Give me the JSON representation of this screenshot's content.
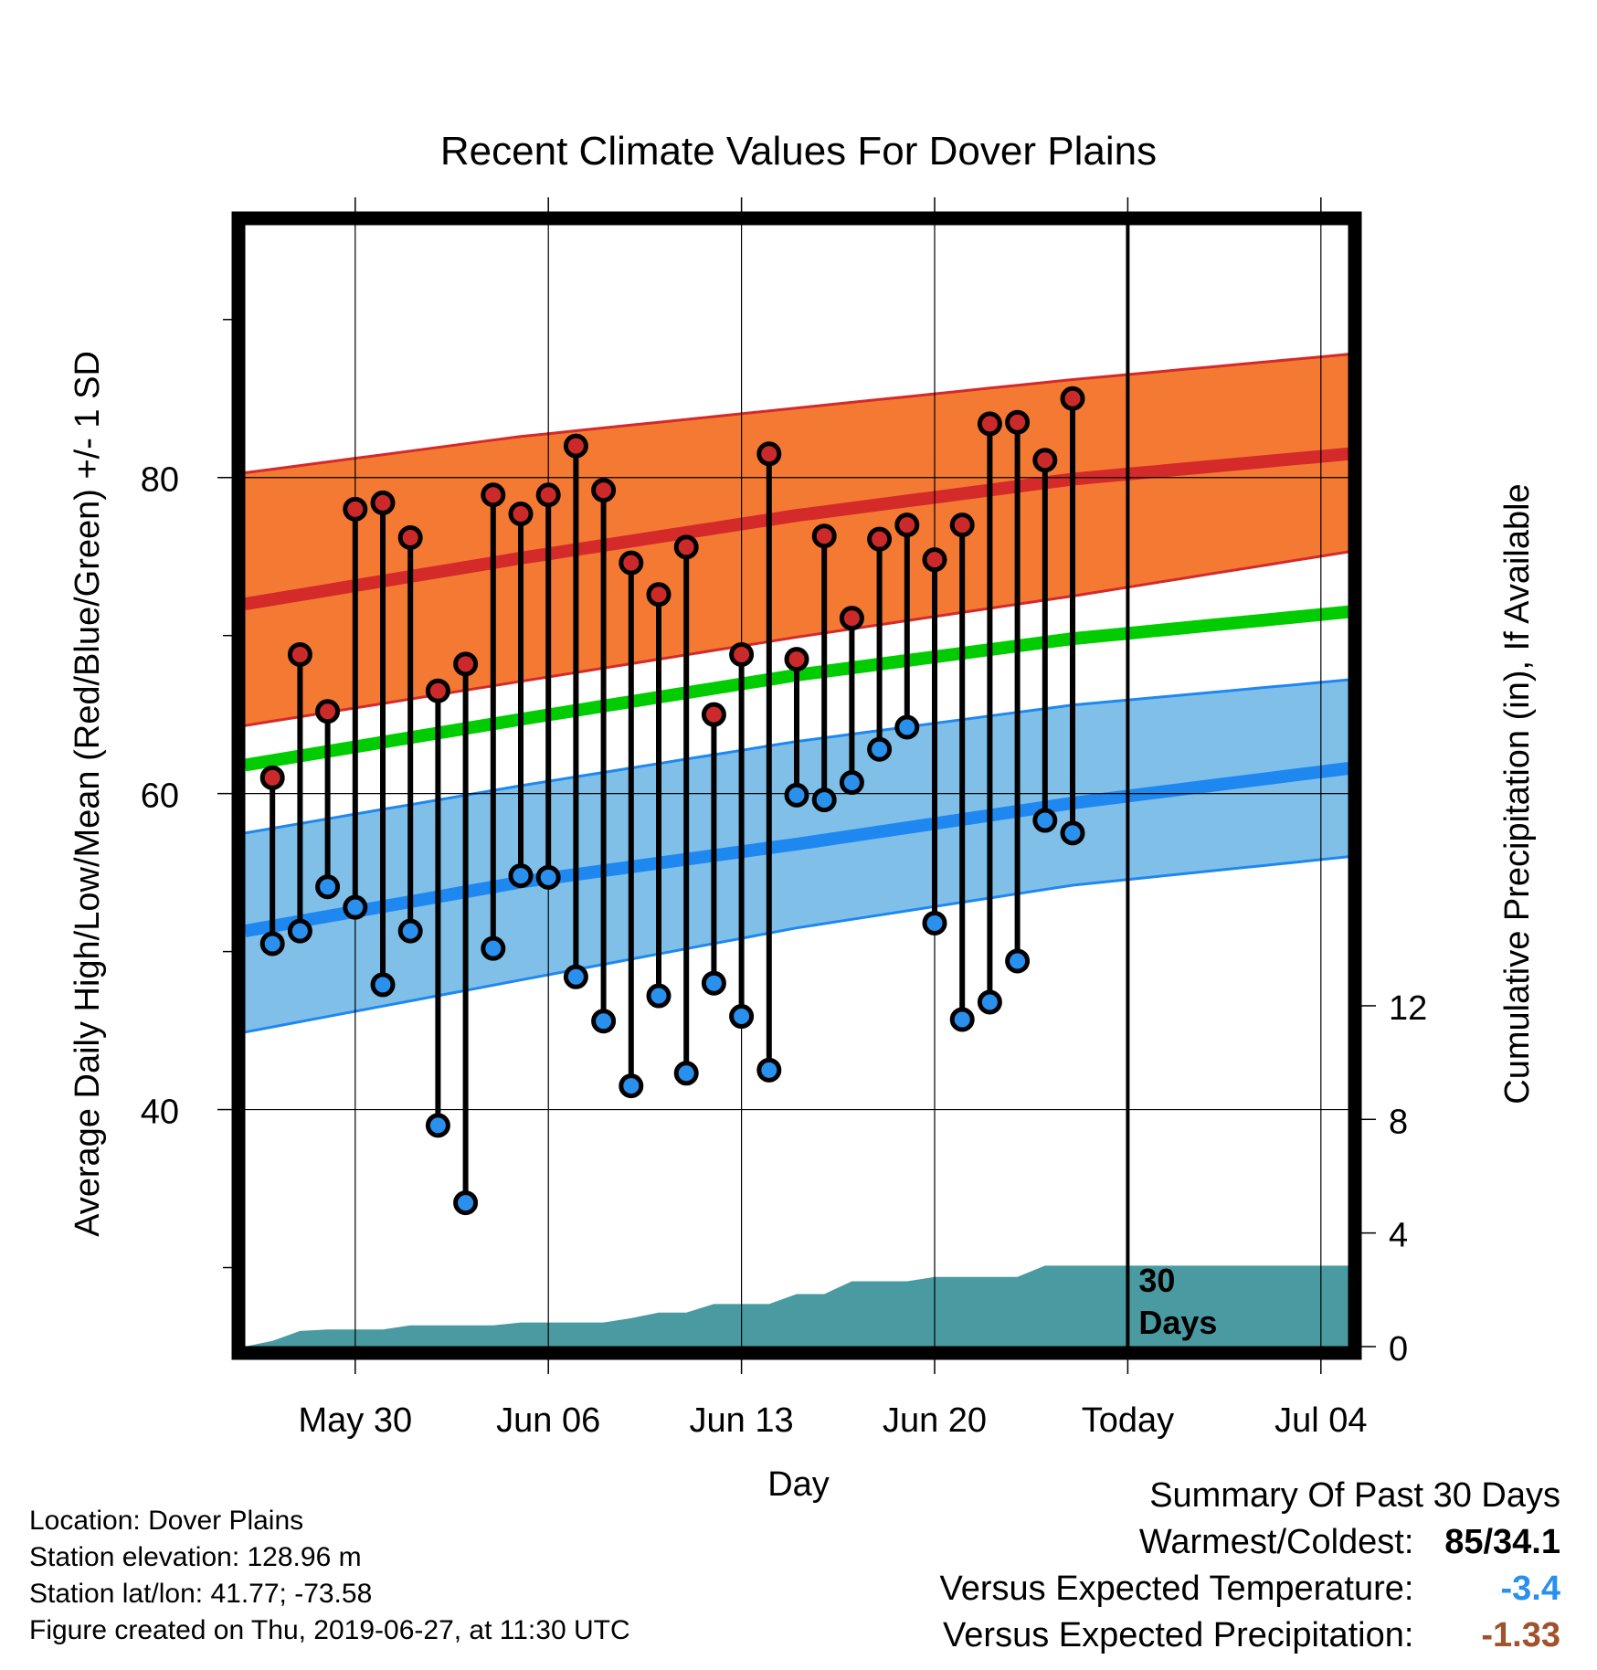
{
  "chart_data": {
    "type": "line",
    "title": "Recent Climate Values For Dover Plains",
    "xlabel": "Day",
    "ylabel": "Average Daily High/Low/Mean (Red/Blue/Green) +/- 1 SD",
    "y2label": "Cumulative Precipitation (in), If Available",
    "xlim": [
      "2019-05-26",
      "2019-07-05"
    ],
    "ylim": [
      25,
      96
    ],
    "y2lim": [
      0,
      39.5
    ],
    "x_ticks": [
      {
        "date": "2019-05-30",
        "label": "May 30"
      },
      {
        "date": "2019-06-06",
        "label": "Jun 06"
      },
      {
        "date": "2019-06-13",
        "label": "Jun 13"
      },
      {
        "date": "2019-06-20",
        "label": "Jun 20"
      },
      {
        "date": "2019-06-27",
        "label": "Today"
      },
      {
        "date": "2019-07-04",
        "label": "Jul 04"
      }
    ],
    "y_ticks": [
      40,
      60,
      80
    ],
    "y_minor_ticks": [
      30,
      50,
      70,
      90
    ],
    "y2_ticks": [
      0,
      4,
      8,
      12
    ],
    "today": "2019-06-27",
    "today_label": "30 Days",
    "grid": true,
    "normals": {
      "dates": [
        "2019-05-26",
        "2019-06-05",
        "2019-06-15",
        "2019-06-25",
        "2019-07-05"
      ],
      "high_mean": [
        72.0,
        74.9,
        77.6,
        79.9,
        81.5
      ],
      "high_upper": [
        80.3,
        82.6,
        84.4,
        86.2,
        87.8
      ],
      "high_lower": [
        64.3,
        67.1,
        69.9,
        72.5,
        75.3
      ],
      "avg_mean": [
        61.8,
        64.7,
        67.5,
        69.8,
        71.5
      ],
      "low_mean": [
        51.3,
        54.4,
        56.8,
        59.4,
        61.6
      ],
      "low_upper": [
        57.5,
        60.5,
        63.3,
        65.6,
        67.2
      ],
      "low_lower": [
        44.9,
        48.2,
        51.5,
        54.2,
        56.0
      ]
    },
    "series": [
      {
        "name": "High",
        "dates": [
          "2019-05-27",
          "2019-05-28",
          "2019-05-29",
          "2019-05-30",
          "2019-05-31",
          "2019-06-01",
          "2019-06-02",
          "2019-06-03",
          "2019-06-04",
          "2019-06-05",
          "2019-06-06",
          "2019-06-07",
          "2019-06-08",
          "2019-06-09",
          "2019-06-10",
          "2019-06-11",
          "2019-06-12",
          "2019-06-13",
          "2019-06-14",
          "2019-06-15",
          "2019-06-16",
          "2019-06-17",
          "2019-06-18",
          "2019-06-19",
          "2019-06-20",
          "2019-06-21",
          "2019-06-22",
          "2019-06-23",
          "2019-06-24",
          "2019-06-25",
          "2019-06-26"
        ],
        "values": [
          61.0,
          68.8,
          65.2,
          78.0,
          78.4,
          76.2,
          66.5,
          68.2,
          78.9,
          77.7,
          78.9,
          82.0,
          79.2,
          74.6,
          72.6,
          75.6,
          65.0,
          68.8,
          81.5,
          68.5,
          76.3,
          71.1,
          76.1,
          77.0,
          74.8,
          77.0,
          83.4,
          83.5,
          81.1,
          85.0,
          null
        ]
      },
      {
        "name": "Low",
        "dates": [
          "2019-05-27",
          "2019-05-28",
          "2019-05-29",
          "2019-05-30",
          "2019-05-31",
          "2019-06-01",
          "2019-06-02",
          "2019-06-03",
          "2019-06-04",
          "2019-06-05",
          "2019-06-06",
          "2019-06-07",
          "2019-06-08",
          "2019-06-09",
          "2019-06-10",
          "2019-06-11",
          "2019-06-12",
          "2019-06-13",
          "2019-06-14",
          "2019-06-15",
          "2019-06-16",
          "2019-06-17",
          "2019-06-18",
          "2019-06-19",
          "2019-06-20",
          "2019-06-21",
          "2019-06-22",
          "2019-06-23",
          "2019-06-24",
          "2019-06-25",
          "2019-06-26"
        ],
        "values": [
          50.5,
          51.3,
          54.1,
          52.8,
          47.9,
          51.3,
          39.0,
          34.1,
          50.2,
          54.8,
          54.7,
          48.4,
          45.6,
          41.5,
          47.2,
          42.3,
          48.0,
          45.9,
          42.5,
          59.9,
          59.6,
          60.7,
          62.8,
          64.2,
          51.8,
          45.7,
          46.8,
          49.4,
          58.3,
          57.5,
          null
        ]
      },
      {
        "name": "Cumulative Precipitation",
        "dates": [
          "2019-05-26",
          "2019-05-27",
          "2019-05-28",
          "2019-05-29",
          "2019-05-30",
          "2019-05-31",
          "2019-06-01",
          "2019-06-02",
          "2019-06-03",
          "2019-06-04",
          "2019-06-05",
          "2019-06-06",
          "2019-06-07",
          "2019-06-08",
          "2019-06-09",
          "2019-06-10",
          "2019-06-11",
          "2019-06-12",
          "2019-06-13",
          "2019-06-14",
          "2019-06-15",
          "2019-06-16",
          "2019-06-17",
          "2019-06-18",
          "2019-06-19",
          "2019-06-20",
          "2019-06-21",
          "2019-06-22",
          "2019-06-23",
          "2019-06-24",
          "2019-06-25",
          "2019-06-26",
          "2019-07-05"
        ],
        "values": [
          0.0,
          0.2,
          0.55,
          0.6,
          0.6,
          0.6,
          0.75,
          0.75,
          0.75,
          0.75,
          0.85,
          0.85,
          0.85,
          0.85,
          1.0,
          1.2,
          1.2,
          1.5,
          1.5,
          1.5,
          1.85,
          1.85,
          2.3,
          2.3,
          2.3,
          2.45,
          2.45,
          2.45,
          2.45,
          2.85,
          2.85,
          2.85,
          2.85
        ]
      }
    ]
  },
  "footer": {
    "location": "Location: Dover Plains",
    "elevation": "Station elevation: 128.96 m",
    "latlon": "Station lat/lon: 41.77; -73.58",
    "created": "Figure created on Thu, 2019-06-27, at 11:30 UTC"
  },
  "summary": {
    "heading": "Summary Of Past 30 Days",
    "warmest_label": "Warmest/Coldest:",
    "warmest_value": "85/34.1",
    "temp_label": "Versus Expected Temperature:",
    "temp_value": "-3.4",
    "precip_label": "Versus Expected Precipitation:",
    "precip_value": "-1.33"
  },
  "colors": {
    "high_band": "#f47a33",
    "high_line": "#d42a2a",
    "low_band": "#80c0e8",
    "low_line": "#1e88f0",
    "mean_line": "#00cc00",
    "precip_fill": "#4a9aa2",
    "high_dot": "#cc2a2a",
    "low_dot": "#2a90ee",
    "temp_value": "#2a90ee",
    "precip_value": "#a0522d"
  }
}
